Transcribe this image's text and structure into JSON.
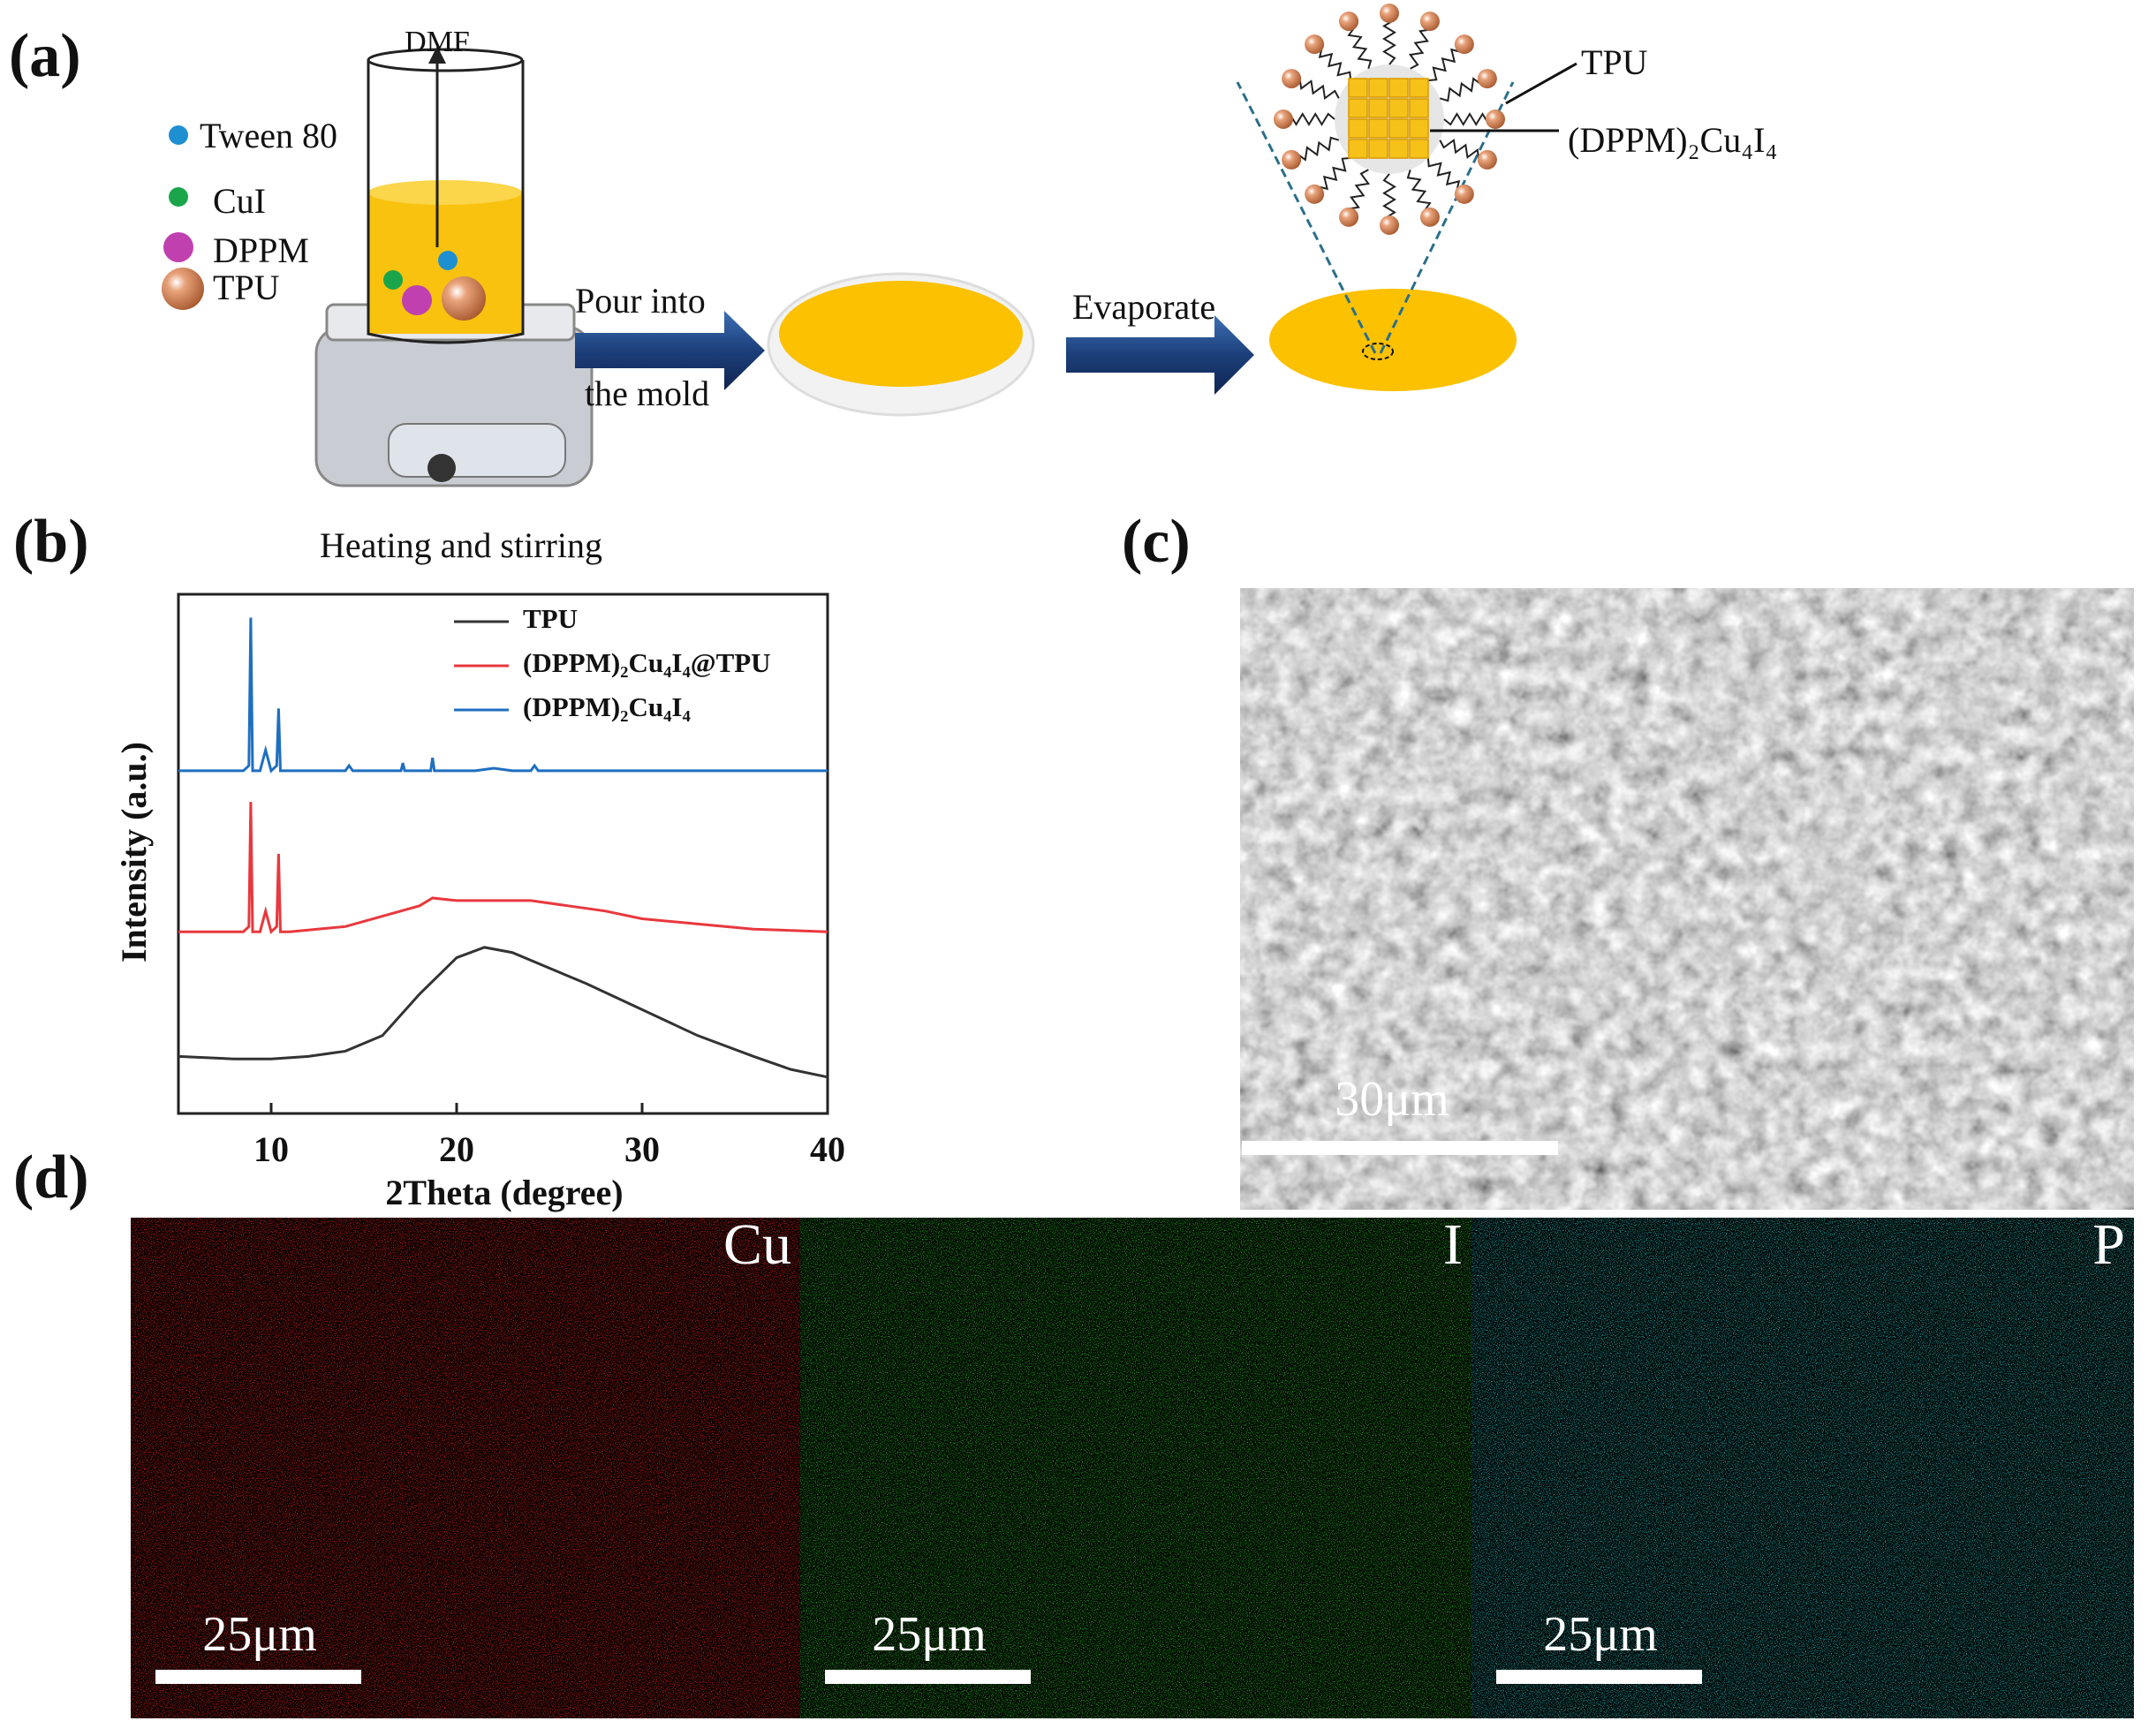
{
  "panel_labels": [
    "(a)",
    "(b)",
    "(c)",
    "(d)"
  ],
  "schematic": {
    "solvent": "DMF",
    "reagents": [
      "Tween 80",
      "CuI",
      "DPPM",
      "TPU"
    ],
    "step1": [
      "Pour into",
      "the mold"
    ],
    "step2": "Evaporate",
    "process": "Heating and stirring",
    "callouts": [
      "TPU",
      "(DPPM)₂Cu₄I₄"
    ]
  },
  "chart_data": {
    "type": "line",
    "xlabel": "2Theta (degree)",
    "ylabel": "Intensity (a.u.)",
    "xlim": [
      5,
      40
    ],
    "xticks": [
      10,
      20,
      30,
      40
    ],
    "ylim": [
      0,
      100
    ],
    "series": [
      {
        "name": "TPU",
        "color": "#333333",
        "x": [
          5,
          8,
          10,
          12,
          14,
          16,
          18,
          20,
          21.5,
          23,
          25,
          27,
          30,
          33,
          36,
          38,
          40
        ],
        "values": [
          11,
          10.5,
          10.5,
          11,
          12,
          15,
          23,
          30,
          32,
          31,
          28,
          25,
          20,
          15,
          11,
          8.5,
          7
        ]
      },
      {
        "name": "(DPPM)₂Cu₄I₄@TPU",
        "color": "#e8383d",
        "x": [
          5,
          8.5,
          8.8,
          8.9,
          9.0,
          9.4,
          9.7,
          10.0,
          10.3,
          10.4,
          10.5,
          11,
          14,
          16,
          18,
          18.7,
          20,
          22,
          24,
          26,
          28,
          30,
          33,
          36,
          40
        ],
        "values": [
          35,
          35,
          36,
          60,
          35,
          35,
          39,
          35,
          36,
          50,
          35,
          35,
          36,
          38,
          40,
          41.5,
          41,
          41,
          41,
          40,
          39,
          37.5,
          36.5,
          35.5,
          35
        ]
      },
      {
        "name": "(DPPM)₂Cu₄I₄",
        "color": "#1f6fc0",
        "x": [
          5,
          8.5,
          8.8,
          8.9,
          9.0,
          9.4,
          9.7,
          10.0,
          10.3,
          10.4,
          10.5,
          11,
          14,
          14.2,
          14.4,
          17,
          17.1,
          17.2,
          18.6,
          18.7,
          18.8,
          21,
          22,
          23,
          24,
          24.2,
          24.4,
          26,
          30,
          35,
          40
        ],
        "values": [
          66,
          66,
          67,
          95.5,
          66,
          66,
          70,
          66,
          67,
          78,
          66,
          66,
          66,
          67,
          66,
          66,
          67.5,
          66,
          66,
          68.5,
          66,
          66,
          66.5,
          66,
          66,
          67,
          66,
          66,
          66,
          66,
          66
        ]
      }
    ]
  },
  "sem": {
    "scale_label": "30μm"
  },
  "eds": {
    "maps": [
      {
        "element": "Cu",
        "scale_label": "25μm",
        "color": "#ff2a2a"
      },
      {
        "element": "I",
        "scale_label": "25μm",
        "color": "#2fd22f"
      },
      {
        "element": "P",
        "scale_label": "25μm",
        "color": "#2fd6d6"
      }
    ]
  }
}
